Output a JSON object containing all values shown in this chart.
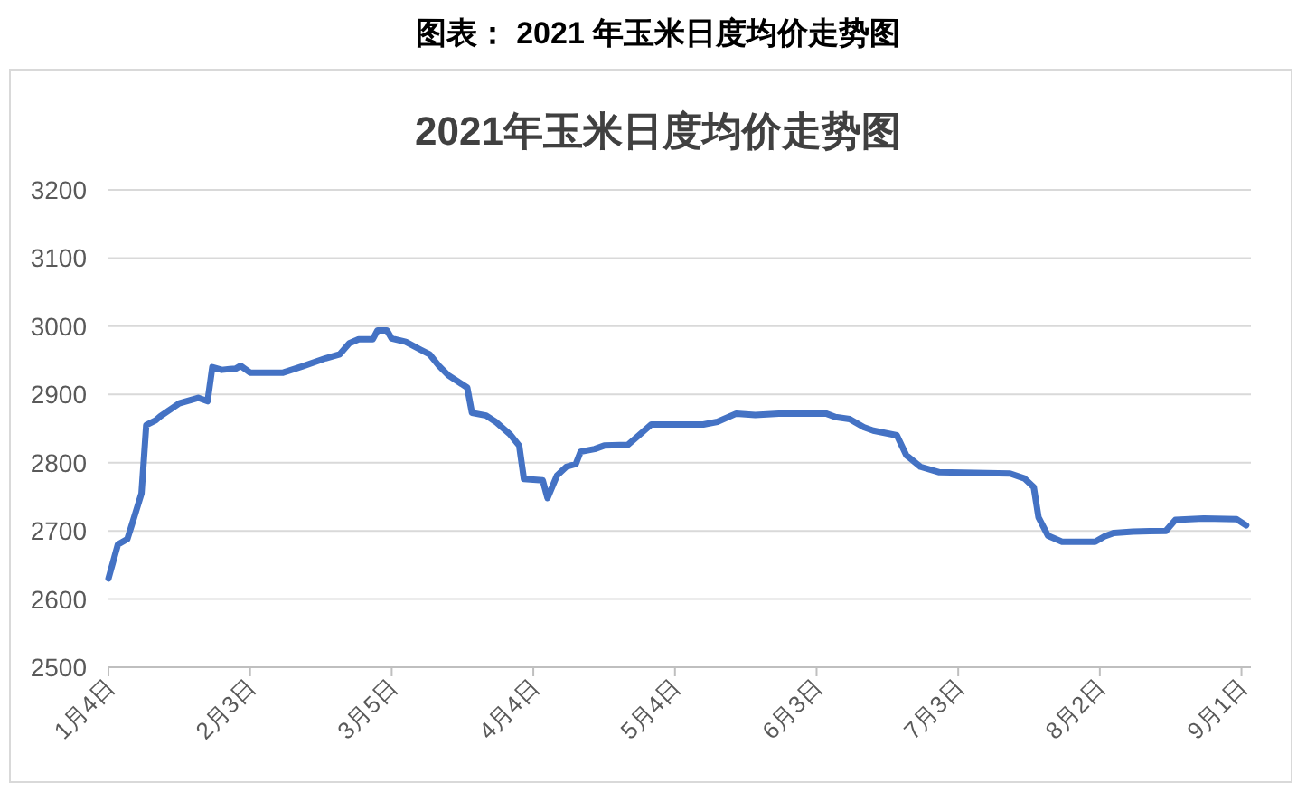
{
  "chart_data": {
    "type": "line",
    "title": "2021年玉米日度均价走势图",
    "annotations": [
      "图表： 2021 年玉米日度均价走势图"
    ],
    "x": [
      "--01-04",
      "--01-05",
      "--01-06",
      "--01-08",
      "--01-09",
      "--01-11",
      "--01-12",
      "--01-14",
      "--01-15",
      "--01-19",
      "--01-22",
      "--01-23",
      "--01-25",
      "--01-26",
      "--01-28",
      "--01-31",
      "--02-01",
      "--02-03",
      "--02-10",
      "--02-14",
      "--02-19",
      "--02-22",
      "--02-24",
      "--02-26",
      "--03-01",
      "--03-02",
      "--03-04",
      "--03-05",
      "--03-08",
      "--03-11",
      "--03-13",
      "--03-15",
      "--03-17",
      "--03-21",
      "--03-22",
      "--03-25",
      "--03-27",
      "--03-30",
      "--04-01",
      "--04-02",
      "--04-06",
      "--04-07",
      "--04-09",
      "--04-11",
      "--04-13",
      "--04-14",
      "--04-17",
      "--04-19",
      "--04-24",
      "--04-26",
      "--04-29",
      "--05-10",
      "--05-13",
      "--05-17",
      "--05-21",
      "--05-26",
      "--06-05",
      "--06-07",
      "--06-10",
      "--06-13",
      "--06-15",
      "--06-20",
      "--06-22",
      "--06-25",
      "--06-29",
      "--07-14",
      "--07-17",
      "--07-19",
      "--07-20",
      "--07-22",
      "--07-25",
      "--08-01",
      "--08-03",
      "--08-05",
      "--08-09",
      "--08-16",
      "--08-18",
      "--08-24",
      "--08-31",
      "--09-02"
    ],
    "series": [
      {
        "color": "#4472c4",
        "values": [
          2630,
          2655,
          2680,
          2688,
          2710,
          2755,
          2855,
          2862,
          2868,
          2887,
          2893,
          2895,
          2890,
          2940,
          2936,
          2938,
          2942,
          2932,
          2932,
          2941,
          2953,
          2959,
          2975,
          2981,
          2981,
          2994,
          2994,
          2982,
          2977,
          2966,
          2959,
          2942,
          2928,
          2910,
          2873,
          2869,
          2860,
          2842,
          2825,
          2776,
          2774,
          2748,
          2781,
          2794,
          2798,
          2816,
          2820,
          2825,
          2826,
          2838,
          2856,
          2856,
          2860,
          2872,
          2870,
          2872,
          2872,
          2867,
          2864,
          2852,
          2847,
          2840,
          2811,
          2794,
          2786,
          2784,
          2777,
          2764,
          2720,
          2693,
          2684,
          2684,
          2692,
          2697,
          2699,
          2700,
          2716,
          2718,
          2717,
          2708
        ]
      }
    ],
    "xlim": [
      "--01-04",
      "--09-03"
    ],
    "xticks": [
      {
        "value": "--01-04",
        "label": "1月4日"
      },
      {
        "value": "--02-03",
        "label": "2月3日"
      },
      {
        "value": "--03-05",
        "label": "3月5日"
      },
      {
        "value": "--04-04",
        "label": "4月4日"
      },
      {
        "value": "--05-04",
        "label": "5月4日"
      },
      {
        "value": "--06-03",
        "label": "6月3日"
      },
      {
        "value": "--07-03",
        "label": "7月3日"
      },
      {
        "value": "--08-02",
        "label": "8月2日"
      },
      {
        "value": "--09-01",
        "label": "9月1日"
      }
    ],
    "ylim": [
      2500,
      3200
    ],
    "yticks": [
      2500,
      2600,
      2700,
      2800,
      2900,
      3000,
      3100,
      3200
    ],
    "grid": "y"
  }
}
